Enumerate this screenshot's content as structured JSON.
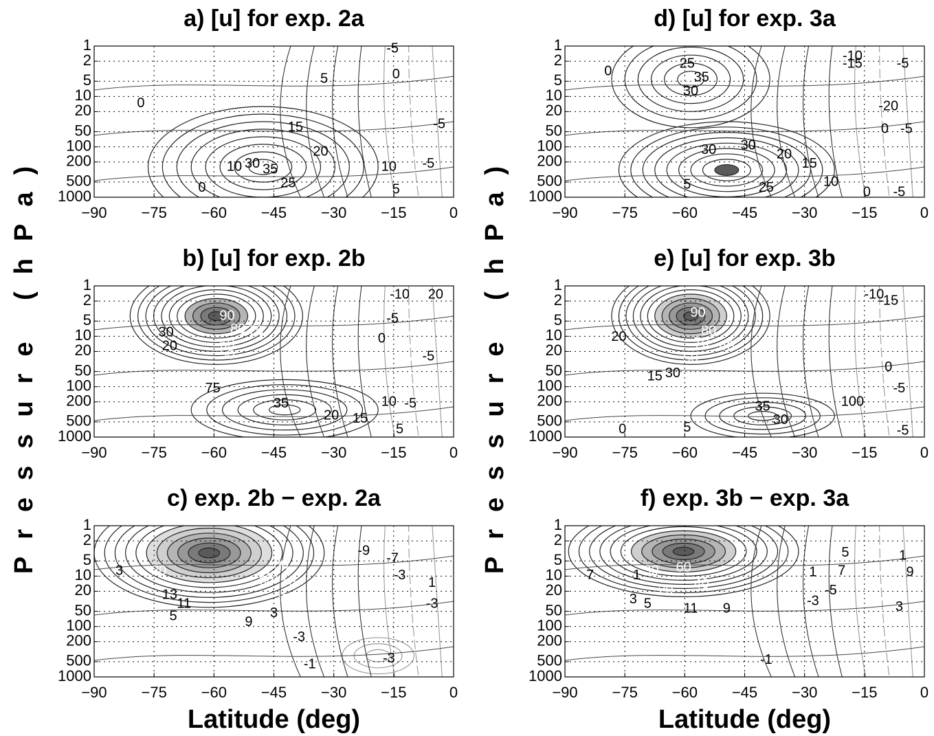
{
  "chart_data": [
    {
      "type": "contour",
      "title": "a)  [u] for exp. 2a",
      "xlim": [
        -90,
        0
      ],
      "xticks": [
        {
          "value": -90,
          "label": "−90"
        },
        {
          "value": -75,
          "label": "−75"
        },
        {
          "value": -60,
          "label": "−60"
        },
        {
          "value": -45,
          "label": "−45"
        },
        {
          "value": -30,
          "label": "−30"
        },
        {
          "value": -15,
          "label": "−15"
        },
        0
      ],
      "ylim": [
        1000,
        1
      ],
      "yticks": [
        1,
        2,
        5,
        10,
        20,
        50,
        100,
        200,
        500,
        1000
      ],
      "log_y": true,
      "grid": true,
      "contour_labels": [
        -5,
        0,
        5,
        0,
        15,
        -5,
        20,
        10,
        30,
        35,
        25,
        10,
        -5,
        0,
        5
      ]
    },
    {
      "type": "contour",
      "title": "b)  [u] for exp. 2b",
      "ylabel": "Pressure (hPa)",
      "xlim": [
        -90,
        0
      ],
      "xticks": [
        {
          "value": -90,
          "label": "−90"
        },
        {
          "value": -75,
          "label": "−75"
        },
        {
          "value": -60,
          "label": "−60"
        },
        {
          "value": -45,
          "label": "−45"
        },
        {
          "value": -30,
          "label": "−30"
        },
        {
          "value": -15,
          "label": "−15"
        },
        0
      ],
      "ylim": [
        1000,
        1
      ],
      "yticks": [
        1,
        2,
        5,
        10,
        20,
        50,
        100,
        200,
        500,
        1000
      ],
      "log_y": true,
      "grid": true,
      "contour_labels": [
        -10,
        20,
        -5,
        0,
        30,
        20,
        90,
        80,
        70,
        60,
        50,
        -5,
        75,
        35,
        20,
        15,
        10,
        -5,
        5
      ]
    },
    {
      "type": "contour",
      "title": "c) exp. 2b − exp. 2a",
      "xlabel": "Latitude (deg)",
      "xlim": [
        -90,
        0
      ],
      "xticks": [
        {
          "value": -90,
          "label": "−90"
        },
        {
          "value": -75,
          "label": "−75"
        },
        {
          "value": -60,
          "label": "−60"
        },
        {
          "value": -45,
          "label": "−45"
        },
        {
          "value": -30,
          "label": "−30"
        },
        {
          "value": -15,
          "label": "−15"
        },
        0
      ],
      "ylim": [
        1000,
        1
      ],
      "yticks": [
        1,
        2,
        5,
        10,
        20,
        50,
        100,
        200,
        500,
        1000
      ],
      "log_y": true,
      "grid": true,
      "contour_labels": [
        -9,
        -7,
        -3,
        1,
        -3,
        3,
        20,
        80,
        70,
        60,
        50,
        30,
        13,
        11,
        5,
        9,
        3,
        -3,
        -3,
        -1
      ]
    },
    {
      "type": "contour",
      "title": "d)  [u] for exp. 3a",
      "xlim": [
        -90,
        0
      ],
      "xticks": [
        {
          "value": -90,
          "label": "−90"
        },
        {
          "value": -75,
          "label": "−75"
        },
        {
          "value": -60,
          "label": "−60"
        },
        {
          "value": -45,
          "label": "−45"
        },
        {
          "value": -30,
          "label": "−30"
        },
        {
          "value": -15,
          "label": "−15"
        },
        0
      ],
      "ylim": [
        1000,
        1
      ],
      "yticks": [
        1,
        2,
        5,
        10,
        20,
        50,
        100,
        200,
        500,
        1000
      ],
      "log_y": true,
      "grid": true,
      "contour_labels": [
        -10,
        -15,
        -5,
        0,
        25,
        35,
        30,
        -20,
        0,
        -5,
        30,
        30,
        20,
        15,
        10,
        0,
        5,
        25,
        -5
      ]
    },
    {
      "type": "contour",
      "title": "e) [u] for exp. 3b",
      "ylabel": "Pressure (hPa)",
      "xlim": [
        -90,
        0
      ],
      "xticks": [
        {
          "value": -90,
          "label": "−90"
        },
        {
          "value": -75,
          "label": "−75"
        },
        {
          "value": -60,
          "label": "−60"
        },
        {
          "value": -45,
          "label": "−45"
        },
        {
          "value": -30,
          "label": "−30"
        },
        {
          "value": -15,
          "label": "−15"
        },
        0
      ],
      "ylim": [
        1000,
        1
      ],
      "yticks": [
        1,
        2,
        5,
        10,
        20,
        50,
        100,
        200,
        500,
        1000
      ],
      "log_y": true,
      "grid": true,
      "contour_labels": [
        -10,
        -15,
        90,
        80,
        70,
        60,
        20,
        50,
        30,
        15,
        0,
        100,
        -5,
        35,
        30,
        0,
        -5,
        5
      ]
    },
    {
      "type": "contour",
      "title": "f) exp. 3b − exp. 3a",
      "xlabel": "Latitude (deg)",
      "xlim": [
        -90,
        0
      ],
      "xticks": [
        {
          "value": -90,
          "label": "−90"
        },
        {
          "value": -75,
          "label": "−75"
        },
        {
          "value": -60,
          "label": "−60"
        },
        {
          "value": -45,
          "label": "−45"
        },
        {
          "value": -30,
          "label": "−30"
        },
        {
          "value": -15,
          "label": "−15"
        },
        0
      ],
      "ylim": [
        1000,
        1
      ],
      "yticks": [
        1,
        2,
        5,
        10,
        20,
        50,
        100,
        200,
        500,
        1000
      ],
      "log_y": true,
      "grid": true,
      "contour_labels": [
        7,
        1,
        30,
        60,
        40,
        20,
        3,
        5,
        11,
        9,
        1,
        -5,
        -3,
        7,
        5,
        1,
        9,
        3,
        -1
      ]
    }
  ]
}
